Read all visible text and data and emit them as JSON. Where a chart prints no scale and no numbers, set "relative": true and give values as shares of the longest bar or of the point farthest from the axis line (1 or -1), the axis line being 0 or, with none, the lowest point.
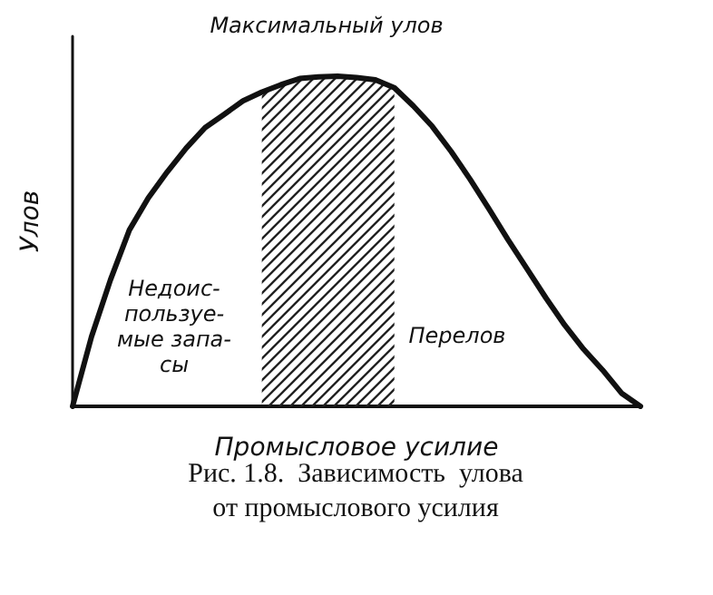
{
  "chart_data": {
    "type": "line",
    "relative": true,
    "xlabel": "Промысловое усилие",
    "ylabel": "Улов",
    "tick_labels": false,
    "grid": false,
    "marker": "none",
    "line_style": "solid",
    "categories": [
      null,
      null,
      null,
      null,
      null,
      null,
      null,
      null,
      null,
      null,
      null,
      null,
      null,
      null,
      null,
      null,
      null,
      null,
      null,
      null,
      null,
      null,
      null,
      null,
      null,
      null,
      null,
      null,
      null,
      null,
      null
    ],
    "series": [
      {
        "color": "#111111",
        "values": [
          0,
          0.211,
          0.383,
          0.534,
          0.631,
          0.71,
          0.782,
          0.844,
          0.884,
          0.925,
          0.952,
          0.974,
          0.993,
          0.998,
          1,
          0.996,
          0.989,
          0.965,
          0.91,
          0.848,
          0.772,
          0.688,
          0.598,
          0.505,
          0.417,
          0.329,
          0.246,
          0.173,
          0.11,
          0.04,
          0
        ]
      },
      {
        "type": "area",
        "color": "#222222",
        "values": [
          null,
          null,
          null,
          null,
          null,
          null,
          null,
          null,
          null,
          null,
          0.952,
          0.974,
          0.993,
          0.998,
          1,
          0.996,
          0.989,
          0.965,
          null,
          null,
          null,
          null,
          null,
          null,
          null,
          null,
          null,
          null,
          null,
          null,
          null
        ]
      }
    ],
    "annotations": [
      "Максимальный улов",
      "Недоис-\nпользуе-\nмые запа-\nсы",
      "Перелов",
      "Рис. 1.8.  Зависимость  улова\nот промыслового усилия"
    ]
  }
}
